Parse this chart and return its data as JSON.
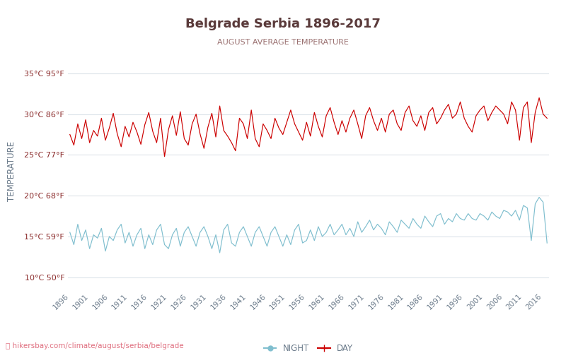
{
  "title": "Belgrade Serbia 1896-2017",
  "subtitle": "AUGUST AVERAGE TEMPERATURE",
  "ylabel": "TEMPERATURE",
  "footer": "hikersbay.com/climate/august/serbia/belgrade",
  "year_start": 1896,
  "year_end": 2017,
  "yticks_c": [
    10,
    15,
    20,
    25,
    30,
    35
  ],
  "yticks_f": [
    50,
    59,
    68,
    77,
    86,
    95
  ],
  "ylim": [
    8.5,
    37.5
  ],
  "title_color": "#5a3a3a",
  "subtitle_color": "#9a7070",
  "axis_label_color": "#6a7a8a",
  "tick_label_color": "#8a2a2a",
  "grid_color": "#dde4ea",
  "day_color": "#cc0000",
  "night_color": "#80bfcf",
  "bg_color": "#ffffff",
  "day_data": [
    27.5,
    26.2,
    28.8,
    27.0,
    29.3,
    26.5,
    28.0,
    27.3,
    29.5,
    26.8,
    28.3,
    30.1,
    27.6,
    26.0,
    28.5,
    27.2,
    29.0,
    27.8,
    26.3,
    28.7,
    30.2,
    27.9,
    26.5,
    29.5,
    24.8,
    28.1,
    29.8,
    27.4,
    30.3,
    27.0,
    26.2,
    28.8,
    30.0,
    27.6,
    25.8,
    28.4,
    30.1,
    27.2,
    31.0,
    28.0,
    27.3,
    26.5,
    25.5,
    29.5,
    28.8,
    27.0,
    30.5,
    27.0,
    26.0,
    28.8,
    28.0,
    27.0,
    29.5,
    28.3,
    27.5,
    29.0,
    30.5,
    28.8,
    27.8,
    26.8,
    29.0,
    27.3,
    30.2,
    28.5,
    27.2,
    29.8,
    30.8,
    29.0,
    27.5,
    29.2,
    27.8,
    29.5,
    30.5,
    28.8,
    27.0,
    29.8,
    30.8,
    29.2,
    28.0,
    29.5,
    27.8,
    30.0,
    30.5,
    28.8,
    28.0,
    30.2,
    31.0,
    29.2,
    28.5,
    29.8,
    28.0,
    30.2,
    30.8,
    28.8,
    29.5,
    30.5,
    31.2,
    29.5,
    30.0,
    31.5,
    29.5,
    28.5,
    27.8,
    29.8,
    30.5,
    31.0,
    29.2,
    30.2,
    31.0,
    30.5,
    30.0,
    28.8,
    31.5,
    30.5,
    26.8,
    30.8,
    31.5,
    26.5,
    30.2,
    32.0,
    30.0,
    29.5
  ],
  "night_data": [
    15.5,
    14.0,
    16.5,
    14.5,
    15.8,
    13.5,
    15.2,
    14.8,
    16.0,
    13.2,
    15.0,
    14.5,
    15.8,
    16.5,
    14.2,
    15.5,
    13.8,
    15.2,
    16.0,
    13.5,
    15.2,
    14.0,
    15.8,
    16.5,
    14.0,
    13.5,
    15.2,
    16.0,
    13.8,
    15.5,
    16.2,
    15.0,
    13.8,
    15.5,
    16.2,
    15.0,
    13.5,
    15.2,
    13.0,
    15.8,
    16.5,
    14.2,
    13.8,
    15.5,
    16.2,
    15.0,
    13.8,
    15.5,
    16.2,
    15.0,
    13.8,
    15.5,
    16.2,
    15.0,
    13.8,
    15.2,
    14.0,
    15.8,
    16.5,
    14.2,
    14.5,
    15.8,
    14.5,
    16.2,
    15.0,
    15.5,
    16.5,
    15.2,
    15.8,
    16.5,
    15.2,
    16.0,
    15.0,
    16.8,
    15.5,
    16.2,
    17.0,
    15.8,
    16.5,
    16.0,
    15.2,
    16.8,
    16.2,
    15.5,
    17.0,
    16.5,
    16.0,
    17.2,
    16.5,
    16.0,
    17.5,
    16.8,
    16.2,
    17.5,
    17.8,
    16.5,
    17.2,
    16.8,
    17.8,
    17.2,
    17.0,
    17.8,
    17.2,
    17.0,
    17.8,
    17.5,
    17.0,
    18.0,
    17.5,
    17.2,
    18.2,
    18.0,
    17.5,
    18.2,
    17.0,
    18.8,
    18.5,
    14.5,
    19.0,
    19.8,
    19.2,
    14.2
  ]
}
